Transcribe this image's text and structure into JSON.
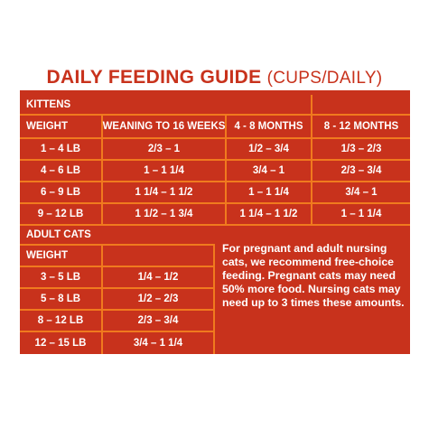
{
  "title": {
    "main": "DAILY FEEDING GUIDE",
    "unit": "(CUPS/DAILY)"
  },
  "kittens": {
    "section_label": "KITTENS",
    "headers": [
      "WEIGHT",
      "WEANING TO 16 WEEKS",
      "4 - 8 MONTHS",
      "8 - 12 MONTHS"
    ],
    "rows": [
      [
        "1 – 4 LB",
        "2/3 – 1",
        "1/2 – 3/4",
        "1/3 – 2/3"
      ],
      [
        "4 – 6 LB",
        "1 – 1 1/4",
        "3/4 – 1",
        "2/3 – 3/4"
      ],
      [
        "6 – 9 LB",
        "1 1/4 – 1 1/2",
        "1 – 1 1/4",
        "3/4 – 1"
      ],
      [
        "9 – 12 LB",
        "1 1/2 – 1 3/4",
        "1 1/4 – 1 1/2",
        "1 – 1 1/4"
      ]
    ]
  },
  "adult": {
    "section_label": "ADULT CATS",
    "headers": [
      "WEIGHT",
      ""
    ],
    "rows": [
      [
        "3 – 5 LB",
        "1/4 – 1/2"
      ],
      [
        "5 – 8 LB",
        "1/2  – 2/3"
      ],
      [
        "8 – 12 LB",
        "2/3 – 3/4"
      ],
      [
        "12 – 15 LB",
        "3/4 – 1 1/4"
      ]
    ],
    "note": "For pregnant and adult nursing cats, we recommend free-choice feeding. Pregnant cats may need 50% more food. Nursing cats may need up to 3 times these amounts."
  },
  "colors": {
    "background": "#c8321c",
    "grid_lines": "#f07a1e",
    "title": "#c8321c",
    "text": "#ffffff"
  }
}
